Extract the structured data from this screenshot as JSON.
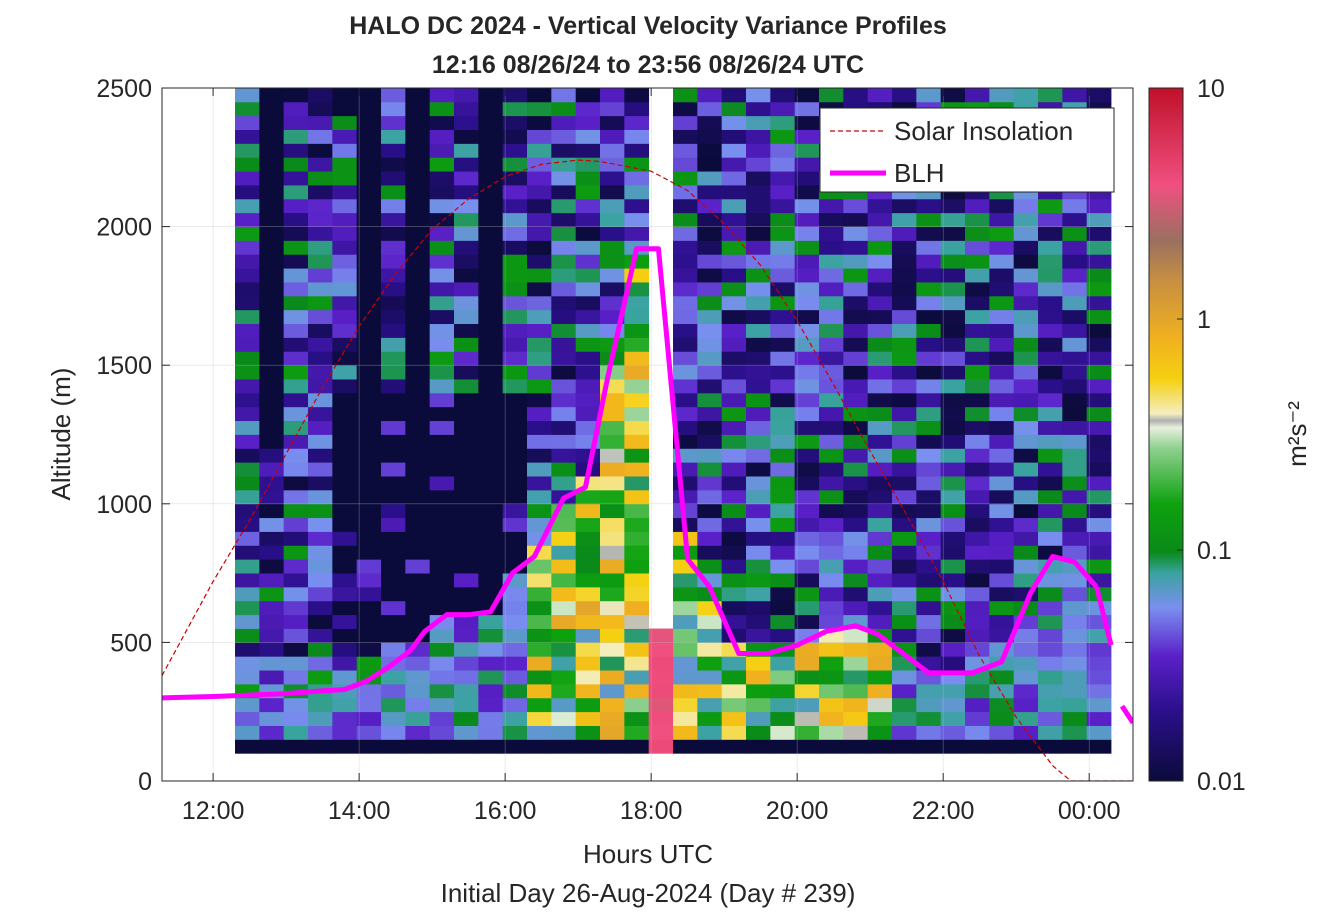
{
  "chart_data": {
    "type": "heatmap",
    "title": "HALO DC 2024 - Vertical Velocity Variance Profiles",
    "subtitle": "12:16 08/26/24 to 23:56 08/26/24  UTC",
    "xlabel": "Hours UTC",
    "xlabel2": "Initial Day 26-Aug-2024 (Day # 239)",
    "ylabel": "Altitude (m)",
    "xlim": [
      11.3,
      24.6
    ],
    "ylim": [
      0,
      2500
    ],
    "xticks": [
      12,
      14,
      16,
      18,
      20,
      22,
      24
    ],
    "xtick_labels": [
      "12:00",
      "14:00",
      "16:00",
      "18:00",
      "20:00",
      "22:00",
      "00:00"
    ],
    "yticks": [
      0,
      500,
      1000,
      1500,
      2000,
      2500
    ],
    "ytick_labels": [
      "0",
      "500",
      "1000",
      "1500",
      "2000",
      "2500"
    ],
    "grid": true,
    "legend_position": "top-right",
    "colorbar": {
      "label": "m²s⁻²",
      "scale": "log",
      "range": [
        0.01,
        10
      ],
      "tick_values": [
        0.01,
        0.1,
        1,
        10
      ],
      "tick_labels": [
        "0.01",
        "0.1",
        "1",
        "10"
      ]
    },
    "heatmap": {
      "time_start": 12.3,
      "time_step": 0.3333,
      "num_columns": 36,
      "gap_columns": [
        17
      ],
      "alt_bottom": 100,
      "alt_step": 50,
      "num_rows": 48,
      "clear_bottom": 300,
      "clear_top": 1400,
      "profile_tops": [
        2500,
        1200,
        2500,
        2500,
        2400,
        800,
        2500,
        850,
        2500,
        2500,
        750,
        2500,
        2450,
        2500,
        2450,
        2500,
        2500,
        0,
        2500,
        2500,
        2500,
        2500,
        2500,
        2500,
        2500,
        2500,
        2500,
        2500,
        2500,
        2500,
        2500,
        2500,
        2500,
        2500,
        2500,
        2500
      ],
      "clear_top_last_columns": 1050,
      "gap_column_top": 550,
      "gap_column_value": 3.5
    },
    "series": [
      {
        "name": "Solar Insolation",
        "style": "dashed",
        "color": "#cc0000",
        "x": [
          11.3,
          12.0,
          12.5,
          13.0,
          13.5,
          14.0,
          14.5,
          15.0,
          15.5,
          16.0,
          16.5,
          17.0,
          17.3,
          17.5,
          18.0,
          18.5,
          19.0,
          19.5,
          20.0,
          20.5,
          21.0,
          21.5,
          22.0,
          22.5,
          23.0,
          23.5,
          23.75,
          24.0,
          24.6
        ],
        "y": [
          380,
          720,
          940,
          1180,
          1420,
          1640,
          1830,
          1990,
          2100,
          2180,
          2225,
          2240,
          2235,
          2225,
          2200,
          2130,
          2010,
          1860,
          1660,
          1430,
          1190,
          960,
          720,
          450,
          230,
          55,
          0,
          0,
          0
        ]
      },
      {
        "name": "BLH",
        "style": "solid",
        "color": "#ff00ff",
        "x": [
          11.3,
          12.0,
          12.5,
          13.0,
          13.5,
          13.8,
          14.1,
          14.4,
          14.7,
          14.9,
          15.2,
          15.5,
          15.8,
          16.1,
          16.4,
          16.8,
          17.1,
          17.4,
          17.8,
          18.1,
          18.5,
          18.8,
          19.2,
          19.6,
          20.0,
          20.4,
          20.8,
          21.1,
          21.5,
          21.8,
          22.1,
          22.4,
          22.8,
          23.2,
          23.5,
          23.8,
          24.1
        ],
        "y": [
          300,
          305,
          310,
          315,
          325,
          330,
          360,
          410,
          470,
          540,
          600,
          600,
          610,
          750,
          810,
          1020,
          1060,
          1450,
          1920,
          1920,
          800,
          700,
          460,
          460,
          490,
          540,
          560,
          530,
          450,
          390,
          390,
          390,
          430,
          680,
          810,
          790,
          700
        ]
      },
      {
        "name": "BLH-tail",
        "style": "solid",
        "color": "#ff00ff",
        "x": [
          24.1,
          24.3
        ],
        "y": [
          700,
          490
        ]
      },
      {
        "name": "BLH-tail2",
        "style": "solid",
        "color": "#ff00ff",
        "x": [
          24.45,
          24.6
        ],
        "y": [
          270,
          210
        ]
      }
    ],
    "legend": [
      {
        "label": "Solar Insolation",
        "style": "dashed",
        "color": "#cc0000"
      },
      {
        "label": "BLH",
        "style": "solid",
        "color": "#ff00ff"
      }
    ]
  }
}
